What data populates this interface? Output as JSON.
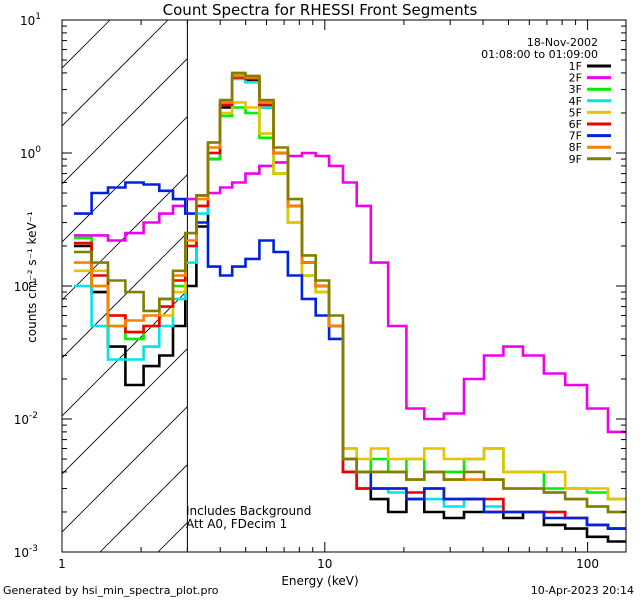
{
  "chart_data": {
    "type": "line",
    "title": "Count Spectra for RHESSI Front Segments",
    "date": "18-Nov-2002",
    "time_range": "01:08:00 to 01:09:00",
    "xlabel": "Energy (keV)",
    "ylabel": "counts cm⁻² s⁻¹ keV⁻¹",
    "xscale": "log",
    "yscale": "log",
    "xlim": [
      1,
      140
    ],
    "ylim": [
      0.001,
      10
    ],
    "x_tick_labels": [
      "1",
      "10",
      "100"
    ],
    "y_tick_labels": [
      "10-3",
      "10-2",
      "10-1",
      "100",
      "101"
    ],
    "shaded_region": {
      "from": 1,
      "to": 3,
      "style": "hatched"
    },
    "annotations": [
      "Includes Background",
      "Att A0, FDecim 1"
    ],
    "series": [
      {
        "name": "1F",
        "color": "#000000",
        "x": [
          1.2,
          1.4,
          1.6,
          1.9,
          2.2,
          2.5,
          2.8,
          3.1,
          3.4,
          3.8,
          4.2,
          4.7,
          5.3,
          6.0,
          6.8,
          7.7,
          8.7,
          9.8,
          11,
          12.5,
          14,
          16,
          19,
          22,
          26,
          31,
          37,
          44,
          52,
          62,
          75,
          90,
          110,
          130
        ],
        "y": [
          0.2,
          0.09,
          0.035,
          0.018,
          0.025,
          0.03,
          0.05,
          0.1,
          0.28,
          0.9,
          2.2,
          3.8,
          3.5,
          2.2,
          1.0,
          0.4,
          0.15,
          0.1,
          0.05,
          0.004,
          0.003,
          0.0025,
          0.002,
          0.0025,
          0.002,
          0.0018,
          0.002,
          0.002,
          0.0018,
          0.002,
          0.0016,
          0.0015,
          0.0013,
          0.0012
        ]
      },
      {
        "name": "2F",
        "color": "#ee00ee",
        "x": [
          1.2,
          1.4,
          1.6,
          1.9,
          2.2,
          2.5,
          2.8,
          3.1,
          3.4,
          3.8,
          4.2,
          4.7,
          5.3,
          6.0,
          6.8,
          7.7,
          8.7,
          9.8,
          11,
          12.5,
          14,
          16,
          19,
          22,
          26,
          31,
          37,
          44,
          52,
          62,
          75,
          90,
          110,
          130
        ],
        "y": [
          0.24,
          0.24,
          0.22,
          0.25,
          0.3,
          0.35,
          0.4,
          0.45,
          0.48,
          0.5,
          0.55,
          0.6,
          0.7,
          0.8,
          0.85,
          0.95,
          1.0,
          0.95,
          0.8,
          0.6,
          0.4,
          0.15,
          0.05,
          0.012,
          0.01,
          0.011,
          0.02,
          0.03,
          0.035,
          0.03,
          0.022,
          0.018,
          0.012,
          0.008
        ]
      },
      {
        "name": "3F",
        "color": "#00ee00",
        "x": [
          1.2,
          1.4,
          1.6,
          1.9,
          2.2,
          2.5,
          2.8,
          3.1,
          3.4,
          3.8,
          4.2,
          4.7,
          5.3,
          6.0,
          6.8,
          7.7,
          8.7,
          9.8,
          11,
          12.5,
          14,
          16,
          19,
          22,
          26,
          31,
          37,
          44,
          52,
          62,
          75,
          90,
          110,
          130
        ],
        "y": [
          0.23,
          0.1,
          0.05,
          0.04,
          0.05,
          0.08,
          0.1,
          0.2,
          0.4,
          0.9,
          1.9,
          2.2,
          2.0,
          1.3,
          0.7,
          0.3,
          0.12,
          0.09,
          0.05,
          0.006,
          0.004,
          0.005,
          0.004,
          0.005,
          0.004,
          0.004,
          0.005,
          0.006,
          0.004,
          0.004,
          0.003,
          0.003,
          0.0028,
          0.0025
        ]
      },
      {
        "name": "4F",
        "color": "#00e5e5",
        "x": [
          1.2,
          1.4,
          1.6,
          1.9,
          2.2,
          2.5,
          2.8,
          3.1,
          3.4,
          3.8,
          4.2,
          4.7,
          5.3,
          6.0,
          6.8,
          7.7,
          8.7,
          9.8,
          11,
          12.5,
          14,
          16,
          19,
          22,
          26,
          31,
          37,
          44,
          52,
          62,
          75,
          90,
          110,
          130
        ],
        "y": [
          0.1,
          0.05,
          0.028,
          0.028,
          0.035,
          0.05,
          0.08,
          0.15,
          0.35,
          1.0,
          2.4,
          3.6,
          3.4,
          2.2,
          1.0,
          0.4,
          0.15,
          0.1,
          0.05,
          0.004,
          0.003,
          0.003,
          0.0028,
          0.0025,
          0.0025,
          0.0022,
          0.0025,
          0.0022,
          0.002,
          0.002,
          0.002,
          0.0018,
          0.0016,
          0.0015
        ]
      },
      {
        "name": "5F",
        "color": "#e5c400",
        "x": [
          1.2,
          1.4,
          1.6,
          1.9,
          2.2,
          2.5,
          2.8,
          3.1,
          3.4,
          3.8,
          4.2,
          4.7,
          5.3,
          6.0,
          6.8,
          7.7,
          8.7,
          9.8,
          11,
          12.5,
          14,
          16,
          19,
          22,
          26,
          31,
          37,
          44,
          52,
          62,
          75,
          90,
          110,
          130
        ],
        "y": [
          0.13,
          0.13,
          0.06,
          0.045,
          0.05,
          0.06,
          0.09,
          0.2,
          0.4,
          1.2,
          2.0,
          2.4,
          2.2,
          1.4,
          0.7,
          0.3,
          0.12,
          0.09,
          0.05,
          0.006,
          0.005,
          0.006,
          0.005,
          0.005,
          0.006,
          0.005,
          0.005,
          0.006,
          0.004,
          0.004,
          0.004,
          0.003,
          0.003,
          0.0025
        ]
      },
      {
        "name": "6F",
        "color": "#ee0000",
        "x": [
          1.2,
          1.4,
          1.6,
          1.9,
          2.2,
          2.5,
          2.8,
          3.1,
          3.4,
          3.8,
          4.2,
          4.7,
          5.3,
          6.0,
          6.8,
          7.7,
          8.7,
          9.8,
          11,
          12.5,
          14,
          16,
          19,
          22,
          26,
          31,
          37,
          44,
          52,
          62,
          75,
          90,
          110,
          130
        ],
        "y": [
          0.21,
          0.12,
          0.06,
          0.045,
          0.05,
          0.07,
          0.11,
          0.2,
          0.4,
          1.0,
          2.3,
          3.7,
          3.6,
          2.3,
          1.0,
          0.4,
          0.15,
          0.1,
          0.05,
          0.004,
          0.003,
          0.003,
          0.003,
          0.0028,
          0.003,
          0.0025,
          0.0025,
          0.0025,
          0.002,
          0.002,
          0.002,
          0.0018,
          0.0016,
          0.0015
        ]
      },
      {
        "name": "7F",
        "color": "#0022dd",
        "x": [
          1.2,
          1.4,
          1.6,
          1.9,
          2.2,
          2.5,
          2.8,
          3.1,
          3.4,
          3.8,
          4.2,
          4.7,
          5.3,
          6.0,
          6.8,
          7.7,
          8.7,
          9.8,
          11,
          12.5,
          14,
          16,
          19,
          22,
          26,
          31,
          37,
          44,
          52,
          62,
          75,
          90,
          110,
          130
        ],
        "y": [
          0.35,
          0.5,
          0.55,
          0.6,
          0.58,
          0.52,
          0.45,
          0.35,
          0.3,
          0.14,
          0.12,
          0.14,
          0.16,
          0.22,
          0.18,
          0.12,
          0.08,
          0.06,
          0.04,
          0.005,
          0.004,
          0.003,
          0.003,
          0.0025,
          0.003,
          0.0025,
          0.0025,
          0.002,
          0.002,
          0.002,
          0.0018,
          0.0018,
          0.0016,
          0.0015
        ]
      },
      {
        "name": "8F",
        "color": "#ff7f00",
        "x": [
          1.2,
          1.4,
          1.6,
          1.9,
          2.2,
          2.5,
          2.8,
          3.1,
          3.4,
          3.8,
          4.2,
          4.7,
          5.3,
          6.0,
          6.8,
          7.7,
          8.7,
          9.8,
          11,
          12.5,
          14,
          16,
          19,
          22,
          26,
          31,
          37,
          44,
          52,
          62,
          75,
          90,
          110,
          130
        ],
        "y": [
          0.15,
          0.1,
          0.05,
          0.055,
          0.06,
          0.08,
          0.12,
          0.22,
          0.45,
          1.1,
          2.4,
          3.8,
          3.7,
          2.4,
          1.0,
          0.4,
          0.15,
          0.1,
          0.05,
          0.005,
          0.004,
          0.004,
          0.004,
          0.0035,
          0.004,
          0.0035,
          0.0035,
          0.0035,
          0.003,
          0.003,
          0.0028,
          0.0025,
          0.0022,
          0.002
        ]
      },
      {
        "name": "9F",
        "color": "#808000",
        "x": [
          1.2,
          1.4,
          1.6,
          1.9,
          2.2,
          2.5,
          2.8,
          3.1,
          3.4,
          3.8,
          4.2,
          4.7,
          5.3,
          6.0,
          6.8,
          7.7,
          8.7,
          9.8,
          11,
          12.5,
          14,
          16,
          19,
          22,
          26,
          31,
          37,
          44,
          52,
          62,
          75,
          90,
          110,
          130
        ],
        "y": [
          0.18,
          0.15,
          0.11,
          0.09,
          0.065,
          0.08,
          0.13,
          0.25,
          0.48,
          1.2,
          2.5,
          4.0,
          3.8,
          2.5,
          1.1,
          0.45,
          0.17,
          0.11,
          0.06,
          0.005,
          0.004,
          0.004,
          0.004,
          0.0035,
          0.004,
          0.0035,
          0.004,
          0.0035,
          0.003,
          0.003,
          0.0028,
          0.0025,
          0.0022,
          0.002
        ]
      }
    ]
  },
  "footer": {
    "generated_by": "Generated by hsi_min_spectra_plot.pro",
    "timestamp": "10-Apr-2023 20:14"
  }
}
